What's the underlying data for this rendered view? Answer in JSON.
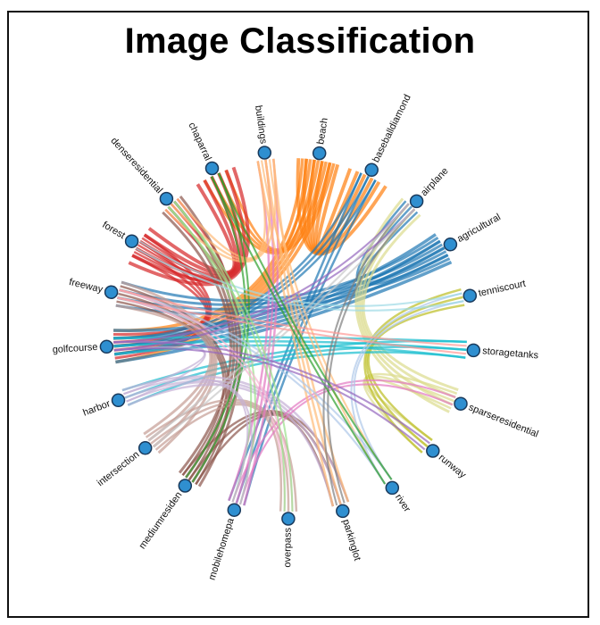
{
  "chart_data": {
    "type": "chord",
    "title": "Image Classification",
    "node_color": "#2f8fd0",
    "nodes": [
      {
        "name": "buildings",
        "color": "#ffbb78"
      },
      {
        "name": "beach",
        "color": "#ff7f0e"
      },
      {
        "name": "baseballdiamond",
        "color": "#1f77b4"
      },
      {
        "name": "airplane",
        "color": "#c7c7c7"
      },
      {
        "name": "agricultural",
        "color": "#1f77b4"
      },
      {
        "name": "tenniscourt",
        "color": "#9edae5"
      },
      {
        "name": "storagetanks",
        "color": "#17becf"
      },
      {
        "name": "sparseresidential",
        "color": "#dbdb8d"
      },
      {
        "name": "runway",
        "color": "#bcbd22"
      },
      {
        "name": "river",
        "color": "#aec7e8"
      },
      {
        "name": "parkinglot",
        "color": "#7f7f7f"
      },
      {
        "name": "overpass",
        "color": "#f7b6d2"
      },
      {
        "name": "mobilehomepa",
        "color": "#e377c2"
      },
      {
        "name": "mediumresiden",
        "color": "#8c564b"
      },
      {
        "name": "intersection",
        "color": "#c49c94"
      },
      {
        "name": "harbor",
        "color": "#c5b0d5"
      },
      {
        "name": "golfcourse",
        "color": "#9467bd"
      },
      {
        "name": "freeway",
        "color": "#ff9896"
      },
      {
        "name": "forest",
        "color": "#d62728"
      },
      {
        "name": "denseresidential",
        "color": "#98df8a"
      },
      {
        "name": "chaparral",
        "color": "#2ca02c"
      }
    ],
    "links": [
      {
        "source": "beach",
        "target": "baseballdiamond",
        "value": 6
      },
      {
        "source": "beach",
        "target": "chaparral",
        "value": 4
      },
      {
        "source": "beach",
        "target": "golfcourse",
        "value": 5
      },
      {
        "source": "forest",
        "target": "chaparral",
        "value": 6
      },
      {
        "source": "forest",
        "target": "denseresidential",
        "value": 3
      },
      {
        "source": "forest",
        "target": "golfcourse",
        "value": 4
      },
      {
        "source": "agricultural",
        "target": "golfcourse",
        "value": 5
      },
      {
        "source": "agricultural",
        "target": "freeway",
        "value": 4
      },
      {
        "source": "agricultural",
        "target": "airplane",
        "value": 3
      },
      {
        "source": "baseballdiamond",
        "target": "mobilehomepa",
        "value": 3
      },
      {
        "source": "baseballdiamond",
        "target": "golfcourse",
        "value": 3
      },
      {
        "source": "sparseresidential",
        "target": "airplane",
        "value": 4
      },
      {
        "source": "sparseresidential",
        "target": "runway",
        "value": 3
      },
      {
        "source": "runway",
        "target": "tenniscourt",
        "value": 3
      },
      {
        "source": "storagetanks",
        "target": "harbor",
        "value": 3
      },
      {
        "source": "storagetanks",
        "target": "golfcourse",
        "value": 3
      },
      {
        "source": "mediumresiden",
        "target": "denseresidential",
        "value": 4
      },
      {
        "source": "mediumresiden",
        "target": "freeway",
        "value": 3
      },
      {
        "source": "mediumresiden",
        "target": "parkinglot",
        "value": 3
      },
      {
        "source": "intersection",
        "target": "freeway",
        "value": 4
      },
      {
        "source": "intersection",
        "target": "overpass",
        "value": 3
      },
      {
        "source": "harbor",
        "target": "parkinglot",
        "value": 3
      },
      {
        "source": "harbor",
        "target": "golfcourse",
        "value": 2
      },
      {
        "source": "mobilehomepa",
        "target": "buildings",
        "value": 3
      },
      {
        "source": "mobilehomepa",
        "target": "sparseresidential",
        "value": 2
      },
      {
        "source": "buildings",
        "target": "parkinglot",
        "value": 3
      },
      {
        "source": "buildings",
        "target": "denseresidential",
        "value": 3
      },
      {
        "source": "buildings",
        "target": "river",
        "value": 2
      },
      {
        "source": "chaparral",
        "target": "mediumresiden",
        "value": 2
      },
      {
        "source": "denseresidential",
        "target": "mobilehomepa",
        "value": 2
      },
      {
        "source": "river",
        "target": "tenniscourt",
        "value": 2
      },
      {
        "source": "river",
        "target": "freeway",
        "value": 2
      },
      {
        "source": "overpass",
        "target": "freeway",
        "value": 2
      },
      {
        "source": "tenniscourt",
        "target": "forest",
        "value": 2
      },
      {
        "source": "parkinglot",
        "target": "airplane",
        "value": 2
      },
      {
        "source": "golfcourse",
        "target": "airplane",
        "value": 2
      },
      {
        "source": "airplane",
        "target": "intersection",
        "value": 2
      },
      {
        "source": "freeway",
        "target": "storagetanks",
        "value": 2
      },
      {
        "source": "chaparral",
        "target": "river",
        "value": 2
      },
      {
        "source": "denseresidential",
        "target": "overpass",
        "value": 2
      },
      {
        "source": "golfcourse",
        "target": "runway",
        "value": 2
      },
      {
        "source": "harbor",
        "target": "mobilehomepa",
        "value": 2
      }
    ]
  }
}
